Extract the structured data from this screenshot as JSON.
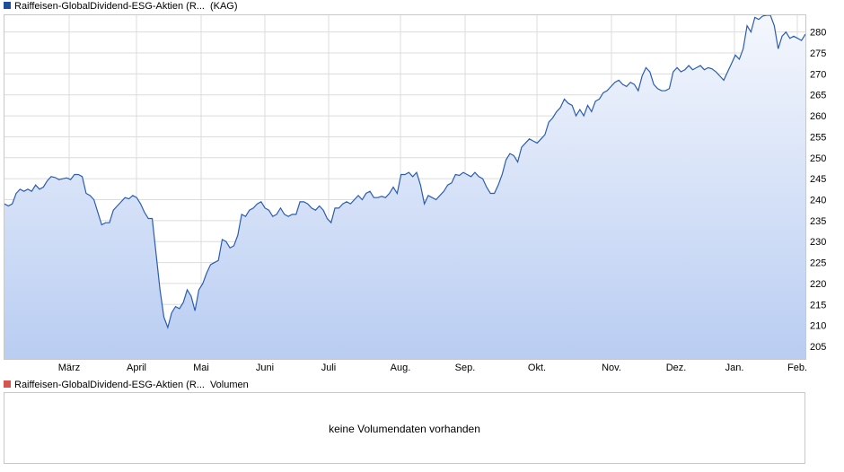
{
  "price_legend": {
    "name": "Raiffeisen-GlobalDividend-ESG-Aktien (R...",
    "suffix": "(KAG)",
    "color": "#1f4e9c"
  },
  "volume_legend": {
    "name": "Raiffeisen-GlobalDividend-ESG-Aktien (R...",
    "suffix": "Volumen",
    "color": "#d9534f"
  },
  "volume_panel": {
    "message": "keine Volumendaten vorhanden"
  },
  "chart_data": {
    "type": "area",
    "title": "",
    "xlabel": "",
    "ylabel": "",
    "x_axis_labels": [
      "März",
      "April",
      "Mai",
      "Juni",
      "Juli",
      "Aug.",
      "Sep.",
      "Okt.",
      "Nov.",
      "Dez.",
      "Jan.",
      "Feb."
    ],
    "y_tick_labels": [
      205,
      210,
      215,
      220,
      225,
      230,
      235,
      240,
      245,
      250,
      255,
      260,
      265,
      270,
      275,
      280
    ],
    "ylim": [
      202,
      284
    ],
    "grid": true,
    "y_axis_side": "right",
    "line_color": "#2a5db0",
    "fill_top_color": "#f4f7fd",
    "fill_bottom_color": "#b9cdf2",
    "series": [
      {
        "values": [
          239.0,
          238.5,
          239.0,
          241.5,
          242.5,
          242.0,
          242.5,
          242.0,
          243.5,
          242.5,
          243.0,
          244.5,
          245.5,
          245.3,
          244.8,
          245.0,
          245.2,
          244.8,
          246.0,
          246.0,
          245.5,
          241.5,
          241.0,
          240.0,
          237.0,
          234.0,
          234.5,
          234.5,
          237.5,
          238.5,
          239.5,
          240.5,
          240.2,
          241.0,
          240.5,
          239.0,
          237.0,
          235.5,
          235.5,
          227.0,
          218.5,
          212.0,
          209.5,
          213.0,
          214.5,
          214.0,
          215.5,
          218.5,
          217.0,
          213.5,
          218.5,
          220.0,
          222.5,
          224.5,
          225.0,
          225.5,
          230.5,
          230.0,
          228.5,
          229.0,
          231.5,
          236.5,
          236.0,
          237.5,
          238.0,
          239.0,
          239.5,
          238.0,
          237.5,
          236.0,
          236.5,
          238.0,
          236.5,
          236.0,
          236.5,
          236.5,
          239.5,
          239.5,
          239.0,
          238.0,
          237.5,
          238.5,
          237.5,
          235.5,
          234.5,
          238.0,
          238.0,
          239.0,
          239.5,
          239.0,
          240.0,
          241.0,
          240.0,
          241.5,
          242.0,
          240.5,
          240.5,
          240.8,
          240.5,
          241.5,
          243.0,
          241.5,
          246.0,
          246.0,
          246.5,
          245.5,
          246.5,
          243.5,
          239.0,
          241.0,
          240.5,
          240.0,
          241.0,
          242.0,
          243.5,
          244.0,
          246.0,
          245.8,
          246.5,
          246.0,
          245.5,
          246.5,
          245.5,
          245.0,
          243.0,
          241.5,
          241.5,
          243.5,
          246.0,
          249.5,
          251.0,
          250.5,
          249.0,
          252.5,
          253.5,
          254.5,
          254.0,
          253.5,
          254.5,
          255.5,
          258.5,
          259.5,
          261.0,
          262.0,
          264.0,
          263.0,
          262.5,
          260.0,
          261.5,
          260.0,
          262.5,
          261.0,
          263.5,
          264.0,
          265.5,
          266.0,
          267.0,
          268.0,
          268.5,
          267.5,
          267.0,
          268.0,
          267.5,
          266.0,
          269.5,
          271.5,
          270.5,
          267.5,
          266.5,
          266.0,
          266.0,
          266.5,
          270.5,
          271.5,
          270.5,
          271.0,
          272.0,
          271.0,
          271.5,
          272.0,
          271.0,
          271.5,
          271.2,
          270.5,
          269.5,
          268.5,
          270.5,
          272.5,
          274.5,
          273.5,
          276.0,
          281.5,
          280.0,
          283.5,
          283.0,
          283.8,
          285.0,
          284.5,
          281.5,
          276.0,
          279.0,
          280.0,
          278.5,
          279.0,
          278.5,
          278.0,
          279.5
        ]
      }
    ]
  }
}
